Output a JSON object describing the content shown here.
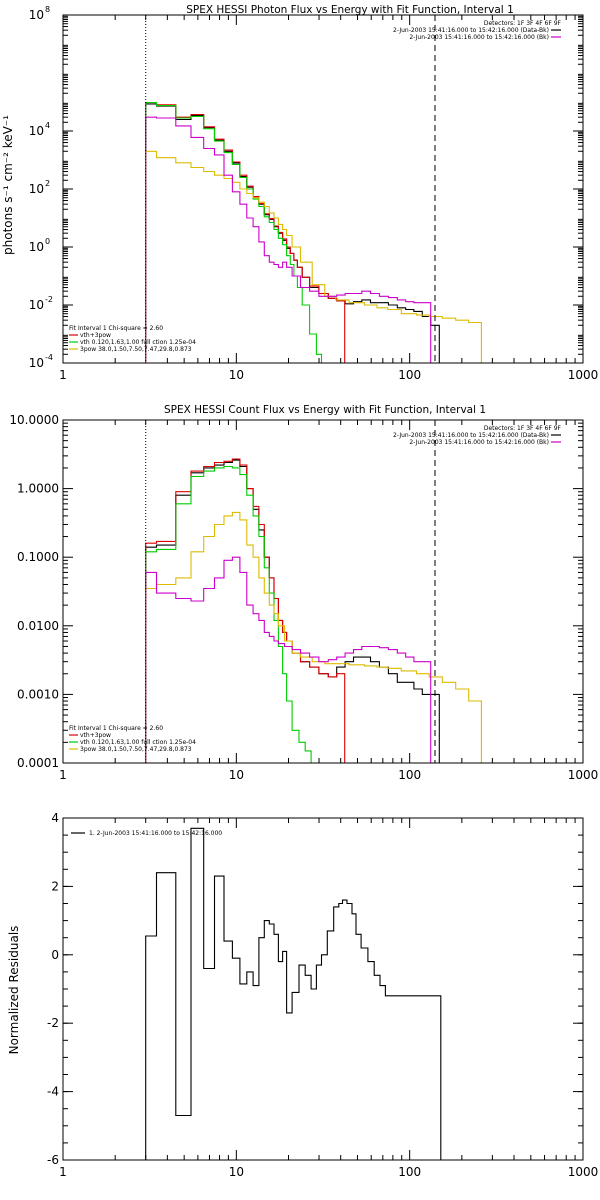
{
  "colors": {
    "frame": "#000000",
    "data_black": "#000000",
    "model_total": "#dd0000",
    "model_vth": "#00cc00",
    "model_3pow": "#ddbb00",
    "background": "#cc00cc"
  },
  "chart_data": [
    {
      "type": "line",
      "title": "SPEX HESSI Photon Flux vs Energy with Fit Function, Interval 1",
      "xlabel": "",
      "ylabel": "photons s⁻¹ cm⁻² keV⁻¹",
      "xlog": true,
      "ylog": true,
      "xlim": [
        1,
        1000
      ],
      "ylim": [
        0.0001,
        100000000
      ],
      "xticks": [
        {
          "v": 1,
          "label": "1"
        },
        {
          "v": 10,
          "label": "10"
        },
        {
          "v": 100,
          "label": "100"
        },
        {
          "v": 1000,
          "label": "1000"
        }
      ],
      "yticks": [
        {
          "v": 0.0001,
          "base": "10",
          "exp": "-4"
        },
        {
          "v": 0.01,
          "base": "10",
          "exp": "-2"
        },
        {
          "v": 1,
          "base": "10",
          "exp": "0"
        },
        {
          "v": 100,
          "base": "10",
          "exp": "2"
        },
        {
          "v": 10000,
          "base": "10",
          "exp": "4"
        },
        {
          "v": 100000000,
          "base": "10",
          "exp": "8"
        }
      ],
      "vlines": [
        {
          "x": 3,
          "style": "dotted"
        },
        {
          "x": 140,
          "style": "dashed"
        }
      ],
      "legend_top": {
        "position": "top-right",
        "header": "Detectors: 1F 3F 4F 6F 9F",
        "entries": [
          {
            "label": "2-Jun-2003 15:41:16.000 to 15:42:16.000 (Data-Bk)",
            "color": "#000000"
          },
          {
            "label": "2-Jun-2003 15:41:16.000 to 15:42:16.000 (Bk)",
            "color": "#cc00cc"
          }
        ]
      },
      "legend_fit": {
        "position": "bottom-left",
        "header": "Fit Interval 1   Chi-square = 2.60",
        "entries": [
          {
            "label": "vth+3pow",
            "color": "#dd0000"
          },
          {
            "label": "vth 0.120,1.63,1.00  full ction 1.25e-04",
            "color": "#00cc00"
          },
          {
            "label": "3pow 38.0,1.50,7.50,7.47,29.8,0.873",
            "color": "#ddbb00"
          }
        ]
      },
      "series": [
        {
          "name": "2-Jun-2003 15:41:16.000 to 15:42:16.000 (Data-Bk)",
          "color": "#000000",
          "x": [
            3,
            4,
            5,
            6,
            7,
            8,
            9,
            10,
            11,
            12,
            13,
            14,
            15,
            16,
            17,
            18,
            19,
            20,
            21,
            22,
            23,
            25,
            28,
            32,
            36,
            40,
            45,
            50,
            56,
            63,
            71,
            80,
            90,
            100,
            112,
            125,
            140
          ],
          "y": [
            85000,
            72000,
            25000,
            34000,
            13000,
            4800,
            2000,
            780,
            270,
            115,
            52,
            30,
            13,
            9,
            5,
            3,
            1.7,
            0.9,
            0.6,
            0.35,
            0.2,
            0.09,
            0.04,
            0.025,
            0.017,
            0.014,
            0.011,
            0.013,
            0.015,
            0.012,
            0.012,
            0.01,
            0.008,
            0.007,
            0.006,
            0.004,
            0.002
          ]
        },
        {
          "name": "vth+3pow",
          "color": "#dd0000",
          "x": [
            3,
            4,
            5,
            6,
            7,
            8,
            9,
            10,
            11,
            12,
            13,
            14,
            15,
            16,
            17,
            18,
            19,
            20,
            21,
            22,
            23,
            25,
            28,
            32,
            36,
            40
          ],
          "y": [
            95000,
            80000,
            30000,
            37000,
            14000,
            5200,
            2200,
            850,
            300,
            125,
            55,
            32,
            14,
            9.5,
            5.3,
            3.2,
            1.9,
            1.0,
            0.6,
            0.35,
            0.2,
            0.09,
            0.045,
            0.025,
            0.017,
            0.014
          ]
        },
        {
          "name": "vth 0.120,1.63,1.00  full ction 1.25e-04",
          "color": "#00cc00",
          "x": [
            3,
            4,
            5,
            6,
            7,
            8,
            9,
            10,
            11,
            12,
            13,
            14,
            15,
            16,
            17,
            18,
            19,
            20,
            21,
            22,
            23,
            25,
            28,
            30,
            32
          ],
          "y": [
            95000,
            75000,
            28000,
            32000,
            12000,
            4500,
            1800,
            700,
            250,
            100,
            45,
            25,
            11,
            7,
            4,
            2,
            1.2,
            0.5,
            0.25,
            0.1,
            0.04,
            0.01,
            0.001,
            0.0002,
            0.0001
          ]
        },
        {
          "name": "3pow 38.0,1.50,7.50,7.47,29.8,0.873",
          "color": "#ddbb00",
          "x": [
            3,
            4,
            5,
            6,
            7,
            8,
            9,
            10,
            11,
            12,
            13,
            14,
            15,
            16,
            17,
            18,
            19,
            20,
            22,
            25,
            30,
            35,
            40,
            50,
            60,
            70,
            80,
            100,
            120,
            140,
            170,
            200,
            240,
            280
          ],
          "y": [
            2000,
            1200,
            800,
            550,
            400,
            300,
            230,
            170,
            100,
            70,
            50,
            35,
            25,
            15,
            10,
            6,
            4,
            2.5,
            1.0,
            0.3,
            0.05,
            0.02,
            0.015,
            0.012,
            0.01,
            0.008,
            0.007,
            0.005,
            0.0045,
            0.004,
            0.0035,
            0.003,
            0.0025,
            0.0001
          ]
        },
        {
          "name": "2-Jun-2003 15:41:16.000 to 15:42:16.000 (Bk)",
          "color": "#cc00cc",
          "x": [
            3,
            4,
            5,
            6,
            7,
            8,
            9,
            10,
            11,
            12,
            13,
            14,
            15,
            16,
            17,
            18,
            19,
            20,
            22,
            25,
            28,
            32,
            36,
            40,
            45,
            50,
            56,
            63,
            71,
            80,
            90,
            100,
            112,
            125,
            140
          ],
          "y": [
            30000,
            28000,
            15000,
            6000,
            2500,
            1500,
            300,
            80,
            30,
            10,
            5,
            1.5,
            0.5,
            0.3,
            0.25,
            0.2,
            0.3,
            0.2,
            0.1,
            0.04,
            0.03,
            0.02,
            0.02,
            0.022,
            0.025,
            0.025,
            0.03,
            0.025,
            0.02,
            0.018,
            0.015,
            0.013,
            0.012,
            0.012,
            0.0001
          ]
        }
      ]
    },
    {
      "type": "line",
      "title": "SPEX HESSI Count Flux vs Energy with Fit Function, Interval 1",
      "xlabel": "",
      "ylabel": "",
      "xlog": true,
      "ylog": true,
      "xlim": [
        1,
        1000
      ],
      "ylim": [
        0.0001,
        10
      ],
      "xticks": [
        {
          "v": 1,
          "label": "1"
        },
        {
          "v": 10,
          "label": "10"
        },
        {
          "v": 100,
          "label": "100"
        },
        {
          "v": 1000,
          "label": "1000"
        }
      ],
      "yticks": [
        {
          "v": 0.0001,
          "label": "0.0001"
        },
        {
          "v": 0.001,
          "label": "0.0010"
        },
        {
          "v": 0.01,
          "label": "0.0100"
        },
        {
          "v": 0.1,
          "label": "0.1000"
        },
        {
          "v": 1,
          "label": "1.0000"
        },
        {
          "v": 10,
          "label": "10.0000"
        }
      ],
      "vlines": [
        {
          "x": 3,
          "style": "dotted"
        },
        {
          "x": 140,
          "style": "dashed"
        }
      ],
      "legend_top": {
        "position": "top-right",
        "header": "Detectors: 1F 3F 4F 6F 9F",
        "entries": [
          {
            "label": "2-Jun-2003 15:41:16.000 to 15:42:16.000 (Data-Bk)",
            "color": "#000000"
          },
          {
            "label": "2-Jun-2003 15:41:16.000 to 15:42:16.000 (Bk)",
            "color": "#cc00cc"
          }
        ]
      },
      "legend_fit": {
        "position": "bottom-left",
        "header": "Fit Interval 1   Chi-square = 2.60",
        "entries": [
          {
            "label": "vth+3pow",
            "color": "#dd0000"
          },
          {
            "label": "vth 0.120,1.63,1.00  full ction 1.25e-04",
            "color": "#00cc00"
          },
          {
            "label": "3pow 38.0,1.50,7.50,7.47,29.8,0.873",
            "color": "#ddbb00"
          }
        ]
      },
      "series": [
        {
          "name": "2-Jun-2003 15:41:16.000 to 15:42:16.000 (Data-Bk)",
          "color": "#000000",
          "x": [
            3,
            4,
            5,
            6,
            7,
            8,
            9,
            10,
            11,
            12,
            13,
            14,
            15,
            16,
            17,
            18,
            19,
            20,
            22,
            25,
            28,
            32,
            36,
            40,
            45,
            50,
            56,
            63,
            71,
            80,
            90,
            100,
            112,
            125,
            140
          ],
          "y": [
            0.14,
            0.15,
            0.8,
            1.7,
            2.0,
            2.2,
            2.4,
            2.6,
            2.1,
            1.0,
            0.5,
            0.25,
            0.1,
            0.05,
            0.025,
            0.012,
            0.008,
            0.006,
            0.004,
            0.003,
            0.0025,
            0.002,
            0.0018,
            0.0025,
            0.003,
            0.0035,
            0.0035,
            0.003,
            0.0025,
            0.002,
            0.0015,
            0.0015,
            0.0012,
            0.001,
            0.001
          ]
        },
        {
          "name": "vth+3pow",
          "color": "#dd0000",
          "x": [
            3,
            4,
            5,
            6,
            7,
            8,
            9,
            10,
            11,
            12,
            13,
            14,
            15,
            16,
            17,
            18,
            19,
            20,
            22,
            25,
            28,
            32,
            36,
            40
          ],
          "y": [
            0.16,
            0.17,
            0.9,
            1.8,
            2.1,
            2.4,
            2.5,
            2.7,
            2.2,
            1.0,
            0.55,
            0.3,
            0.1,
            0.05,
            0.025,
            0.012,
            0.008,
            0.006,
            0.004,
            0.003,
            0.0025,
            0.002,
            0.0018,
            0.002
          ]
        },
        {
          "name": "vth 0.120,1.63,1.00  full ction 1.25e-04",
          "color": "#00cc00",
          "x": [
            3,
            4,
            5,
            6,
            7,
            8,
            9,
            10,
            11,
            12,
            13,
            14,
            15,
            16,
            17,
            18,
            19,
            20,
            22,
            24,
            26,
            28
          ],
          "y": [
            0.12,
            0.13,
            0.6,
            1.5,
            1.8,
            2.0,
            2.1,
            2.0,
            1.6,
            0.8,
            0.4,
            0.2,
            0.07,
            0.03,
            0.012,
            0.005,
            0.002,
            0.0008,
            0.0003,
            0.0002,
            0.00015,
            0.0001
          ]
        },
        {
          "name": "3pow 38.0,1.50,7.50,7.47,29.8,0.873",
          "color": "#ddbb00",
          "x": [
            3,
            4,
            5,
            6,
            7,
            8,
            9,
            10,
            11,
            12,
            13,
            14,
            15,
            16,
            17,
            18,
            20,
            22,
            25,
            30,
            35,
            40,
            50,
            60,
            70,
            80,
            100,
            120,
            140,
            170,
            200,
            240,
            280
          ],
          "y": [
            0.035,
            0.04,
            0.05,
            0.12,
            0.2,
            0.3,
            0.4,
            0.45,
            0.35,
            0.15,
            0.1,
            0.05,
            0.03,
            0.02,
            0.015,
            0.01,
            0.006,
            0.004,
            0.0035,
            0.003,
            0.0028,
            0.0028,
            0.0027,
            0.0026,
            0.0025,
            0.0024,
            0.0022,
            0.002,
            0.0018,
            0.0015,
            0.0012,
            0.0008,
            0.0001
          ]
        },
        {
          "name": "2-Jun-2003 15:41:16.000 to 15:42:16.000 (Bk)",
          "color": "#cc00cc",
          "x": [
            3,
            4,
            5,
            6,
            7,
            8,
            9,
            10,
            11,
            12,
            13,
            14,
            15,
            16,
            17,
            18,
            20,
            22,
            25,
            28,
            32,
            36,
            40,
            45,
            50,
            56,
            63,
            71,
            80,
            90,
            100,
            112,
            125,
            140
          ],
          "y": [
            0.06,
            0.03,
            0.025,
            0.023,
            0.035,
            0.05,
            0.09,
            0.1,
            0.06,
            0.02,
            0.015,
            0.012,
            0.008,
            0.007,
            0.006,
            0.0055,
            0.005,
            0.0045,
            0.004,
            0.0035,
            0.003,
            0.0032,
            0.0035,
            0.004,
            0.0045,
            0.005,
            0.005,
            0.0048,
            0.0045,
            0.004,
            0.0035,
            0.003,
            0.003,
            0.0001
          ]
        }
      ]
    },
    {
      "type": "line",
      "title": "",
      "xlabel": "",
      "ylabel": "Normalized Residuals",
      "xlog": true,
      "ylog": false,
      "xlim": [
        1,
        1000
      ],
      "ylim": [
        -6,
        4
      ],
      "xticks": [
        {
          "v": 1,
          "label": "1"
        },
        {
          "v": 10,
          "label": "10"
        },
        {
          "v": 100,
          "label": "100"
        },
        {
          "v": 1000,
          "label": "1000"
        }
      ],
      "yticks": [
        {
          "v": -6,
          "label": "-6"
        },
        {
          "v": -4,
          "label": "-4"
        },
        {
          "v": -2,
          "label": "-2"
        },
        {
          "v": 0,
          "label": "0"
        },
        {
          "v": 2,
          "label": "2"
        },
        {
          "v": 4,
          "label": "4"
        }
      ],
      "vlines": [],
      "legend_top": {
        "position": "top-left",
        "header": "",
        "entries": [
          {
            "label": "1.  2-Jun-2003 15:41:16.000 to 15:42:16.000",
            "color": "#000000"
          }
        ]
      },
      "legend_fit": null,
      "series": [
        {
          "name": "1.  2-Jun-2003 15:41:16.000 to 15:42:16.000",
          "color": "#000000",
          "x": [
            3,
            4,
            5,
            6,
            7,
            8,
            9,
            10,
            11,
            12,
            13,
            14,
            15,
            16,
            17,
            18,
            19,
            20,
            22,
            24,
            26,
            28,
            30,
            32,
            35,
            38,
            40,
            42,
            45,
            48,
            50,
            55,
            60,
            65,
            70,
            75,
            80,
            85,
            90,
            100,
            110,
            120,
            140
          ],
          "y": [
            0.55,
            2.4,
            -4.7,
            3.7,
            -0.4,
            2.3,
            0.4,
            -0.1,
            -0.85,
            -0.5,
            -0.9,
            0.5,
            1.0,
            0.9,
            0.6,
            -0.2,
            0.1,
            -1.7,
            -1.1,
            -0.3,
            -0.6,
            -1.0,
            -0.3,
            0.0,
            0.7,
            1.4,
            1.5,
            1.6,
            1.5,
            1.2,
            0.6,
            0.2,
            -0.2,
            -0.6,
            -0.9,
            -1.2,
            -1.2,
            -1.2,
            -1.2,
            -1.2,
            -1.2,
            -1.2,
            -1.2
          ]
        }
      ]
    }
  ]
}
